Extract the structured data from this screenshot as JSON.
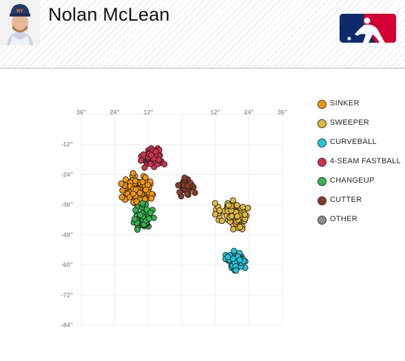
{
  "header": {
    "player_name": "Nolan McLean",
    "logo_icon": "mlb-logo-icon",
    "avatar_icon": "player-headshot-icon"
  },
  "chart_data": {
    "type": "scatter",
    "title": "",
    "xlabel": "",
    "ylabel": "",
    "xlim": [
      -36,
      36
    ],
    "ylim": [
      -84,
      0
    ],
    "x_ticks": [
      {
        "value": -36,
        "label": "36\""
      },
      {
        "value": -24,
        "label": "24\""
      },
      {
        "value": -12,
        "label": "12\""
      },
      {
        "value": 12,
        "label": "12\""
      },
      {
        "value": 24,
        "label": "24\""
      },
      {
        "value": 36,
        "label": "36\""
      }
    ],
    "y_ticks": [
      {
        "value": -12,
        "label": "-12\""
      },
      {
        "value": -24,
        "label": "-24\""
      },
      {
        "value": -36,
        "label": "-36\""
      },
      {
        "value": -48,
        "label": "-48\""
      },
      {
        "value": -60,
        "label": "-60\""
      },
      {
        "value": -72,
        "label": "-72\""
      },
      {
        "value": -84,
        "label": "-84\""
      }
    ],
    "grid": true,
    "legend_position": "right",
    "series": [
      {
        "name": "SINKER",
        "color": "#f5950c",
        "center": [
          -16,
          -29.5
        ],
        "spread": [
          3.6,
          4.0
        ],
        "count": 95,
        "jitter_seed": 11
      },
      {
        "name": "SWEEPER",
        "color": "#e3b73a",
        "center": [
          18,
          -40
        ],
        "spread": [
          3.6,
          3.6
        ],
        "count": 100,
        "jitter_seed": 23
      },
      {
        "name": "CURVEBALL",
        "color": "#1dc8e0",
        "center": [
          19.5,
          -58.5
        ],
        "spread": [
          2.4,
          2.3
        ],
        "count": 60,
        "jitter_seed": 37
      },
      {
        "name": "4-SEAM FASTBALL",
        "color": "#d32f4e",
        "center": [
          -10.5,
          -17
        ],
        "spread": [
          2.3,
          2.4
        ],
        "count": 60,
        "jitter_seed": 41
      },
      {
        "name": "CHANGEUP",
        "color": "#2fb54a",
        "center": [
          -13.5,
          -41
        ],
        "spread": [
          3.0,
          3.6
        ],
        "count": 55,
        "jitter_seed": 53
      },
      {
        "name": "CUTTER",
        "color": "#8b3a26",
        "center": [
          1.5,
          -28.5
        ],
        "spread": [
          2.4,
          2.4
        ],
        "count": 40,
        "jitter_seed": 67
      },
      {
        "name": "OTHER",
        "color": "#8c8c8c",
        "center": null,
        "spread": null,
        "count": 0,
        "jitter_seed": 0
      }
    ]
  }
}
